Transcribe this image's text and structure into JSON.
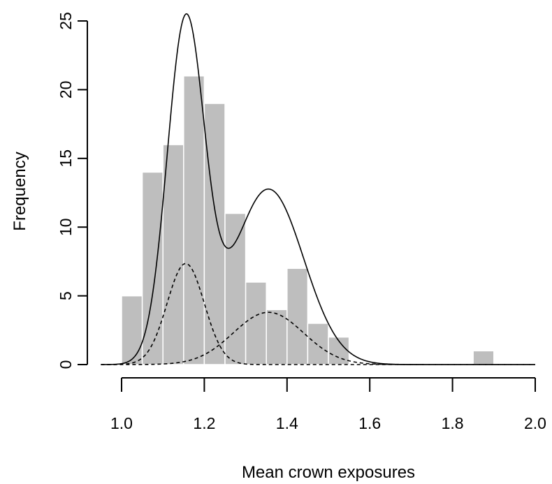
{
  "chart_data": {
    "type": "bar",
    "subtype": "histogram with density overlay",
    "xlabel": "Mean crown exposures",
    "ylabel": "Frequency",
    "xlim": [
      0.95,
      2.0
    ],
    "ylim": [
      0,
      25
    ],
    "x_ticks": [
      "1.0",
      "1.2",
      "1.4",
      "1.6",
      "1.8",
      "2.0"
    ],
    "y_ticks": [
      "0",
      "5",
      "10",
      "15",
      "20",
      "25"
    ],
    "bin_width": 0.05,
    "bins": [
      {
        "x0": 1.0,
        "x1": 1.05,
        "count": 5
      },
      {
        "x0": 1.05,
        "x1": 1.1,
        "count": 14
      },
      {
        "x0": 1.1,
        "x1": 1.15,
        "count": 16
      },
      {
        "x0": 1.15,
        "x1": 1.2,
        "count": 21
      },
      {
        "x0": 1.2,
        "x1": 1.25,
        "count": 19
      },
      {
        "x0": 1.25,
        "x1": 1.3,
        "count": 11
      },
      {
        "x0": 1.3,
        "x1": 1.35,
        "count": 6
      },
      {
        "x0": 1.35,
        "x1": 1.4,
        "count": 4
      },
      {
        "x0": 1.4,
        "x1": 1.45,
        "count": 7
      },
      {
        "x0": 1.45,
        "x1": 1.5,
        "count": 3
      },
      {
        "x0": 1.5,
        "x1": 1.55,
        "count": 2
      },
      {
        "x0": 1.85,
        "x1": 1.9,
        "count": 1
      }
    ],
    "mixture_components": [
      {
        "mean": 1.155,
        "sd": 0.045,
        "peak_frequency": 7.35,
        "line": "dashed"
      },
      {
        "mean": 1.355,
        "sd": 0.085,
        "peak_frequency": 3.8,
        "line": "dashed"
      }
    ],
    "mixture_total": {
      "peak_frequency": 25.5,
      "peak_x": 1.155,
      "line": "solid"
    },
    "colors": {
      "bars": "#bebebe",
      "bar_border": "#ffffff",
      "lines": "#000000"
    },
    "grid": false
  }
}
